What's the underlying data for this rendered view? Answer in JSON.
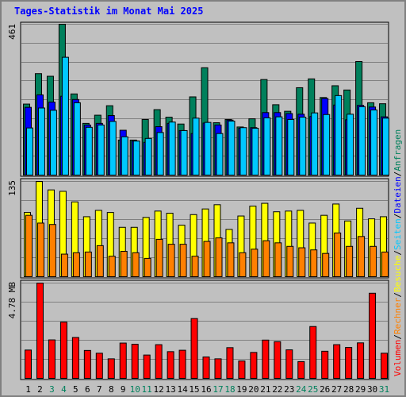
{
  "window": {
    "title": "Tages-Statistik im Monat Mai 2025"
  },
  "legend": {
    "separator": "/",
    "items": [
      {
        "label": "Anfragen",
        "color": "#00805c"
      },
      {
        "label": "Dateien",
        "color": "#0000ff"
      },
      {
        "label": "Seiten",
        "color": "#00c8ff"
      },
      {
        "label": "Besuche",
        "color": "#ffff00"
      },
      {
        "label": "Rechner",
        "color": "#ff8000"
      },
      {
        "label": "Volumen",
        "color": "#ff0000"
      }
    ]
  },
  "colors": {
    "background": "#c0c0c0",
    "grid": "#808080",
    "anfragen": "#00805c",
    "dateien": "#0000ff",
    "seiten": "#00c8ff",
    "besuche": "#ffff00",
    "rechner": "#ff8000",
    "volumen": "#ff0000",
    "weekend_label": "#00805c",
    "weekday_label": "#000000",
    "title": "#0000ff"
  },
  "chart_data": [
    {
      "type": "bar",
      "panel": "hits",
      "max_label": "461",
      "ylim": [
        0,
        461
      ],
      "categories": [
        "1",
        "2",
        "3",
        "4",
        "5",
        "6",
        "7",
        "8",
        "9",
        "10",
        "11",
        "12",
        "13",
        "14",
        "15",
        "16",
        "17",
        "18",
        "19",
        "20",
        "21",
        "22",
        "23",
        "24",
        "25",
        "26",
        "27",
        "28",
        "29",
        "30",
        "31"
      ],
      "weekend_days": [
        "3",
        "4",
        "10",
        "11",
        "17",
        "18",
        "24",
        "25",
        "31"
      ],
      "series": [
        {
          "name": "Anfragen",
          "values": [
            217,
            310,
            302,
            461,
            248,
            158,
            183,
            212,
            107,
            107,
            170,
            200,
            177,
            156,
            239,
            328,
            160,
            170,
            147,
            172,
            292,
            215,
            195,
            267,
            294,
            237,
            273,
            260,
            347,
            221,
            218
          ]
        },
        {
          "name": "Dateien",
          "values": [
            207,
            245,
            223,
            241,
            231,
            153,
            158,
            182,
            137,
            104,
            100,
            148,
            158,
            136,
            127,
            159,
            153,
            168,
            143,
            145,
            191,
            191,
            188,
            186,
            179,
            234,
            214,
            169,
            213,
            208,
            178
          ]
        },
        {
          "name": "Seiten",
          "values": [
            144,
            205,
            198,
            360,
            221,
            146,
            153,
            164,
            117,
            104,
            112,
            130,
            162,
            136,
            174,
            161,
            127,
            165,
            145,
            143,
            175,
            178,
            170,
            177,
            190,
            185,
            243,
            186,
            209,
            199,
            174
          ]
        }
      ]
    },
    {
      "type": "bar",
      "panel": "visits",
      "max_label": "135",
      "ylim": [
        0,
        135
      ],
      "categories": [
        "1",
        "2",
        "3",
        "4",
        "5",
        "6",
        "7",
        "8",
        "9",
        "10",
        "11",
        "12",
        "13",
        "14",
        "15",
        "16",
        "17",
        "18",
        "19",
        "20",
        "21",
        "22",
        "23",
        "24",
        "25",
        "26",
        "27",
        "28",
        "29",
        "30",
        "31"
      ],
      "series": [
        {
          "name": "Besuche",
          "values": [
            91,
            135,
            123,
            121,
            106,
            85,
            94,
            91,
            70,
            70,
            84,
            93,
            90,
            73,
            88,
            96,
            102,
            67,
            86,
            100,
            104,
            92,
            93,
            94,
            76,
            87,
            103,
            79,
            97,
            82,
            85
          ]
        },
        {
          "name": "Rechner",
          "values": [
            87,
            76,
            74,
            32,
            34,
            35,
            44,
            29,
            36,
            34,
            26,
            53,
            46,
            46,
            29,
            50,
            55,
            48,
            34,
            39,
            51,
            48,
            43,
            41,
            38,
            33,
            62,
            43,
            57,
            43,
            35
          ]
        }
      ]
    },
    {
      "type": "bar",
      "panel": "volume",
      "max_label": "4.78 MB",
      "ylim": [
        0,
        4.78
      ],
      "categories": [
        "1",
        "2",
        "3",
        "4",
        "5",
        "6",
        "7",
        "8",
        "9",
        "10",
        "11",
        "12",
        "13",
        "14",
        "15",
        "16",
        "17",
        "18",
        "19",
        "20",
        "21",
        "22",
        "23",
        "24",
        "25",
        "26",
        "27",
        "28",
        "29",
        "30",
        "31"
      ],
      "series": [
        {
          "name": "Volumen",
          "values": [
            1.42,
            4.78,
            1.93,
            2.82,
            2.05,
            1.4,
            1.26,
            0.98,
            1.77,
            1.71,
            1.17,
            1.69,
            1.34,
            1.41,
            3.0,
            1.07,
            0.98,
            1.54,
            0.87,
            1.3,
            1.92,
            1.84,
            1.43,
            0.84,
            2.6,
            1.36,
            1.69,
            1.55,
            1.78,
            4.27,
            1.26
          ]
        }
      ]
    }
  ]
}
